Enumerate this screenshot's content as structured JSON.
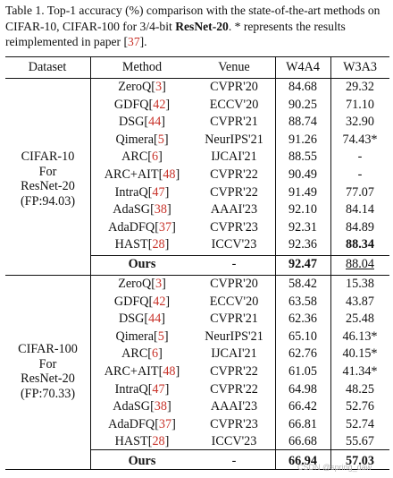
{
  "caption": {
    "lead": "Table 1.  Top-1 accuracy (%) comparison with the state-of-the-art methods on CIFAR-10, CIFAR-100 for 3/4-bit ",
    "model": "ResNet-20",
    "mid": ".  * represents the results reimplemented in paper [",
    "ref": "37",
    "tail": "]."
  },
  "headers": {
    "dataset": "Dataset",
    "method": "Method",
    "venue": "Venue",
    "w4a4": "W4A4",
    "w3a3": "W3A3"
  },
  "groups": [
    {
      "dataset_lines": [
        "CIFAR-10",
        "For",
        "ResNet-20",
        "(FP:94.03)"
      ],
      "rows": [
        {
          "name": "ZeroQ",
          "ref": "3",
          "venue": "CVPR'20",
          "w4a4": "84.68",
          "w3a3": "29.32"
        },
        {
          "name": "GDFQ",
          "ref": "42",
          "venue": "ECCV'20",
          "w4a4": "90.25",
          "w3a3": "71.10"
        },
        {
          "name": "DSG",
          "ref": "44",
          "venue": "CVPR'21",
          "w4a4": "88.74",
          "w3a3": "32.90"
        },
        {
          "name": "Qimera",
          "ref": "5",
          "venue": "NeurIPS'21",
          "w4a4": "91.26",
          "w3a3": "74.43*"
        },
        {
          "name": "ARC",
          "ref": "6",
          "venue": "IJCAI'21",
          "w4a4": "88.55",
          "w3a3": "-"
        },
        {
          "name": "ARC+AIT",
          "ref": "48",
          "venue": "CVPR'22",
          "w4a4": "90.49",
          "w3a3": "-"
        },
        {
          "name": "IntraQ",
          "ref": "47",
          "venue": "CVPR'22",
          "w4a4": "91.49",
          "w3a3": "77.07"
        },
        {
          "name": "AdaSG",
          "ref": "38",
          "venue": "AAAI'23",
          "w4a4": "92.10",
          "w3a3": "84.14"
        },
        {
          "name": "AdaDFQ",
          "ref": "37",
          "venue": "CVPR'23",
          "w4a4": "92.31",
          "w3a3": "84.89"
        },
        {
          "name": "HAST",
          "ref": "28",
          "venue": "ICCV'23",
          "w4a4": "92.36",
          "w3a3": "88.34"
        }
      ],
      "ours": {
        "name": "Ours",
        "venue": "-",
        "w4a4": "92.47",
        "w3a3": "88.04"
      }
    },
    {
      "dataset_lines": [
        "CIFAR-100",
        "For",
        "ResNet-20",
        "(FP:70.33)"
      ],
      "rows": [
        {
          "name": "ZeroQ",
          "ref": "3",
          "venue": "CVPR'20",
          "w4a4": "58.42",
          "w3a3": "15.38"
        },
        {
          "name": "GDFQ",
          "ref": "42",
          "venue": "ECCV'20",
          "w4a4": "63.58",
          "w3a3": "43.87"
        },
        {
          "name": "DSG",
          "ref": "44",
          "venue": "CVPR'21",
          "w4a4": "62.36",
          "w3a3": "25.48"
        },
        {
          "name": "Qimera",
          "ref": "5",
          "venue": "NeurIPS'21",
          "w4a4": "65.10",
          "w3a3": "46.13*"
        },
        {
          "name": "ARC",
          "ref": "6",
          "venue": "IJCAI'21",
          "w4a4": "62.76",
          "w3a3": "40.15*"
        },
        {
          "name": "ARC+AIT",
          "ref": "48",
          "venue": "CVPR'22",
          "w4a4": "61.05",
          "w3a3": "41.34*"
        },
        {
          "name": "IntraQ",
          "ref": "47",
          "venue": "CVPR'22",
          "w4a4": "64.98",
          "w3a3": "48.25"
        },
        {
          "name": "AdaSG",
          "ref": "38",
          "venue": "AAAI'23",
          "w4a4": "66.42",
          "w3a3": "52.76"
        },
        {
          "name": "AdaDFQ",
          "ref": "37",
          "venue": "CVPR'23",
          "w4a4": "66.81",
          "w3a3": "52.74"
        },
        {
          "name": "HAST",
          "ref": "28",
          "venue": "ICCV'23",
          "w4a4": "66.68",
          "w3a3": "55.67"
        }
      ],
      "ours": {
        "name": "Ours",
        "venue": "-",
        "w4a4": "66.94",
        "w3a3": "57.03"
      }
    }
  ],
  "highlight": {
    "g0_hast_w3a3": "bold",
    "g0_ours_w4a4": "bold",
    "g0_ours_w3a3": "underline",
    "g1_ours_w4a4": "bold",
    "g1_ours_w3a3": "bold"
  },
  "colors": {
    "citation": "#c8332a",
    "text": "#111111"
  },
  "watermark": "CSDN @spring_daw"
}
